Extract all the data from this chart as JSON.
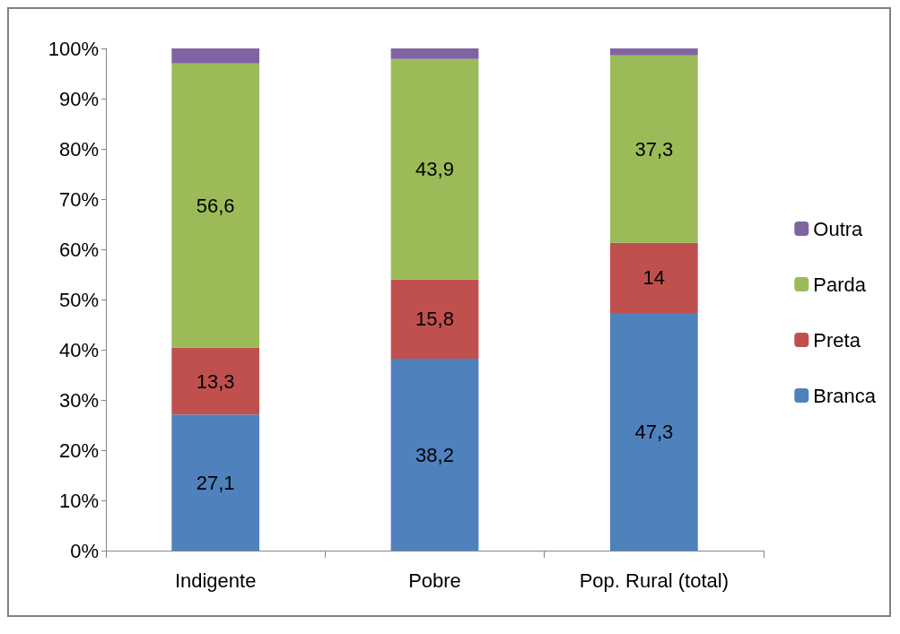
{
  "chart_data": {
    "type": "bar",
    "stacked": true,
    "categories": [
      "Indigente",
      "Pobre",
      "Pop. Rural (total)"
    ],
    "series": [
      {
        "name": "Branca",
        "color": "#4f81bd",
        "values": [
          27.1,
          38.2,
          47.3
        ],
        "value_labels": [
          "27,1",
          "38,2",
          "47,3"
        ]
      },
      {
        "name": "Preta",
        "color": "#c0504d",
        "values": [
          13.3,
          15.8,
          14
        ],
        "value_labels": [
          "13,3",
          "15,8",
          "14"
        ]
      },
      {
        "name": "Parda",
        "color": "#9bbb59",
        "values": [
          56.6,
          43.9,
          37.3
        ],
        "value_labels": [
          "56,6",
          "43,9",
          "37,3"
        ]
      },
      {
        "name": "Outra",
        "color": "#8064a2",
        "values": [
          3.0,
          2.1,
          1.4
        ]
      }
    ],
    "ylim": [
      0,
      100
    ],
    "yticks": [
      {
        "value": 0,
        "label": "0%"
      },
      {
        "value": 10,
        "label": "10%"
      },
      {
        "value": 20,
        "label": "20%"
      },
      {
        "value": 30,
        "label": "30%"
      },
      {
        "value": 40,
        "label": "40%"
      },
      {
        "value": 50,
        "label": "50%"
      },
      {
        "value": 60,
        "label": "60%"
      },
      {
        "value": 70,
        "label": "70%"
      },
      {
        "value": 80,
        "label": "80%"
      },
      {
        "value": 90,
        "label": "90%"
      },
      {
        "value": 100,
        "label": "100%"
      }
    ],
    "grid": false,
    "legend": "right"
  }
}
